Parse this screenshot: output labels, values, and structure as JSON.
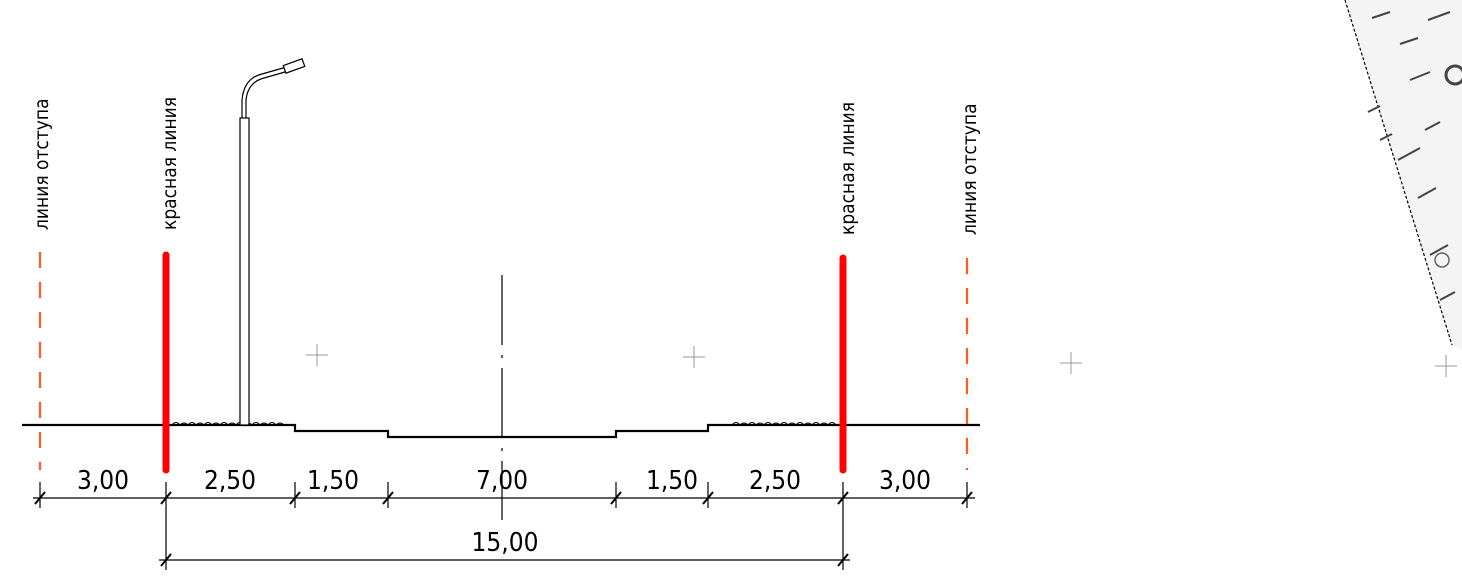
{
  "labels": {
    "setback_left": "линия отступа",
    "red_left": "красная линия",
    "red_right": "красная линия",
    "setback_right": "линия отступа"
  },
  "dimensions": {
    "seg1": "3,00",
    "seg2": "2,50",
    "seg3": "1,50",
    "seg4": "7,00",
    "seg5": "1,50",
    "seg6": "2,50",
    "seg7": "3,00",
    "total": "15,00"
  },
  "colors": {
    "red_line": "#ff0000",
    "setback_line": "#ff5a1f",
    "ink": "#000000"
  }
}
